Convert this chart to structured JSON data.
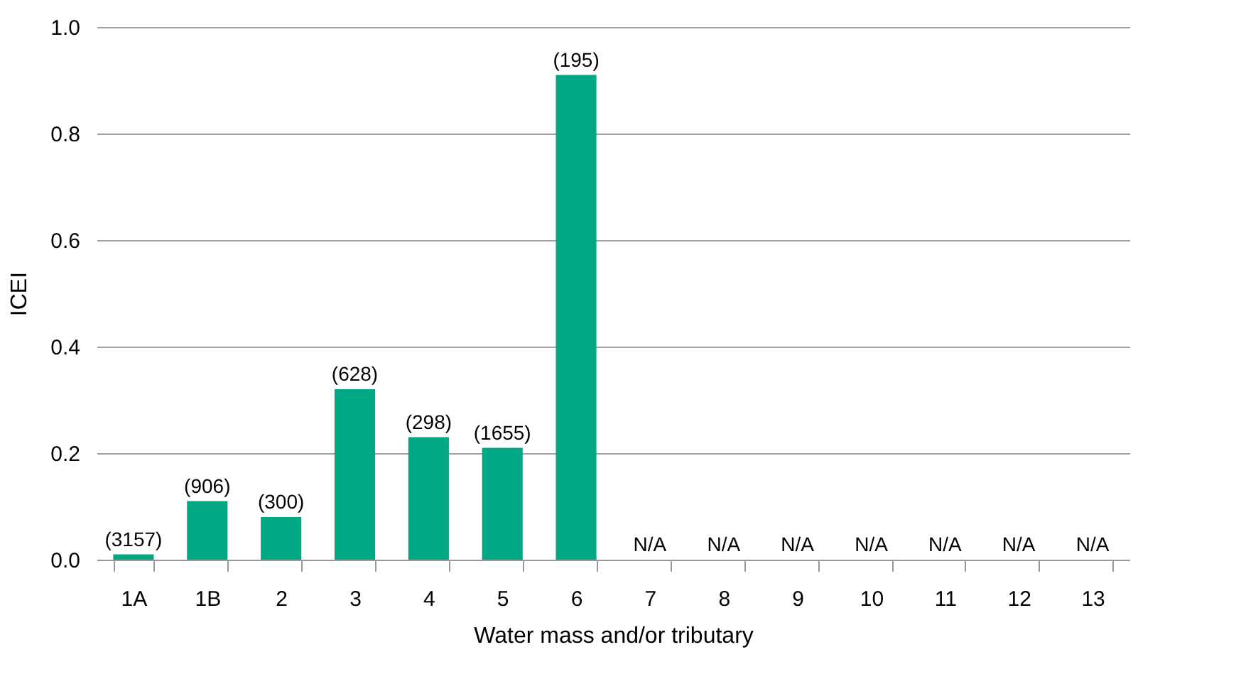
{
  "chart_data": {
    "type": "bar",
    "categories": [
      "1A",
      "1B",
      "2",
      "3",
      "4",
      "5",
      "6",
      "7",
      "8",
      "9",
      "10",
      "11",
      "12",
      "13"
    ],
    "values": [
      0.01,
      0.11,
      0.08,
      0.32,
      0.23,
      0.21,
      0.91,
      null,
      null,
      null,
      null,
      null,
      null,
      null
    ],
    "annotations": [
      {
        "text": "(3157)",
        "x": "1A",
        "y": 0.01
      },
      {
        "text": "(906)",
        "x": "1B",
        "y": 0.11
      },
      {
        "text": "(300)",
        "x": "2",
        "y": 0.08
      },
      {
        "text": "(628)",
        "x": "3",
        "y": 0.32
      },
      {
        "text": "(298)",
        "x": "4",
        "y": 0.23
      },
      {
        "text": "(1655)",
        "x": "5",
        "y": 0.21
      },
      {
        "text": "(195)",
        "x": "6",
        "y": 0.91
      }
    ],
    "value_labels": [
      null,
      null,
      null,
      null,
      null,
      null,
      null,
      "N/A",
      "N/A",
      "N/A",
      "N/A",
      "N/A",
      "N/A",
      "N/A"
    ],
    "color": "#00a884",
    "xlabel": "Water mass and/or tributary",
    "ylabel": "ICEI",
    "ylim": [
      0,
      1.0
    ],
    "yticks": [
      {
        "value": 0,
        "label": "0.0"
      },
      0.2,
      0.4,
      0.6,
      0.8,
      {
        "value": 1,
        "label": "1.0"
      }
    ],
    "grid": "y"
  }
}
